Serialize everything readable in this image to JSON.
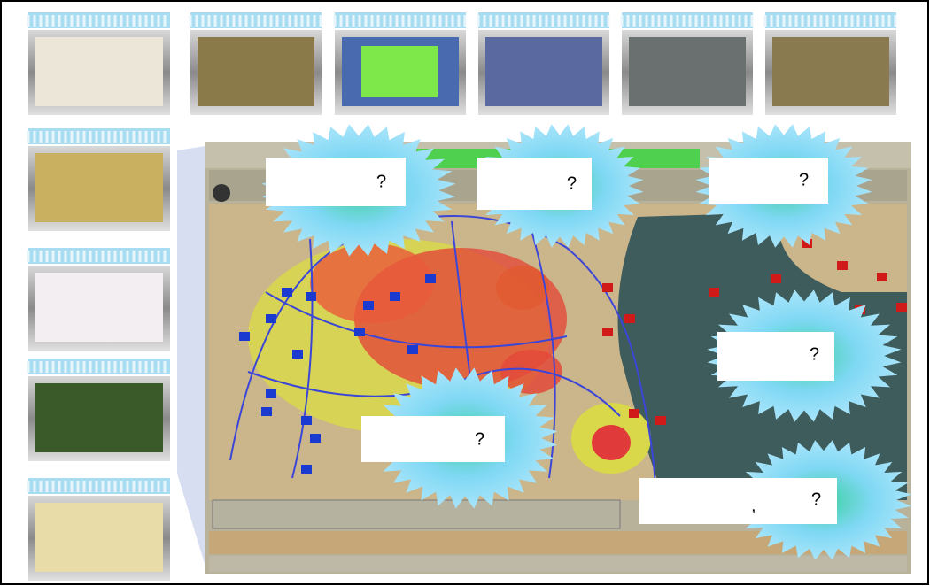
{
  "callouts": [
    [
      "?"
    ],
    [
      "?"
    ],
    [
      "?"
    ],
    [
      "?"
    ],
    [
      "?"
    ],
    [
      ",",
      "?"
    ]
  ]
}
